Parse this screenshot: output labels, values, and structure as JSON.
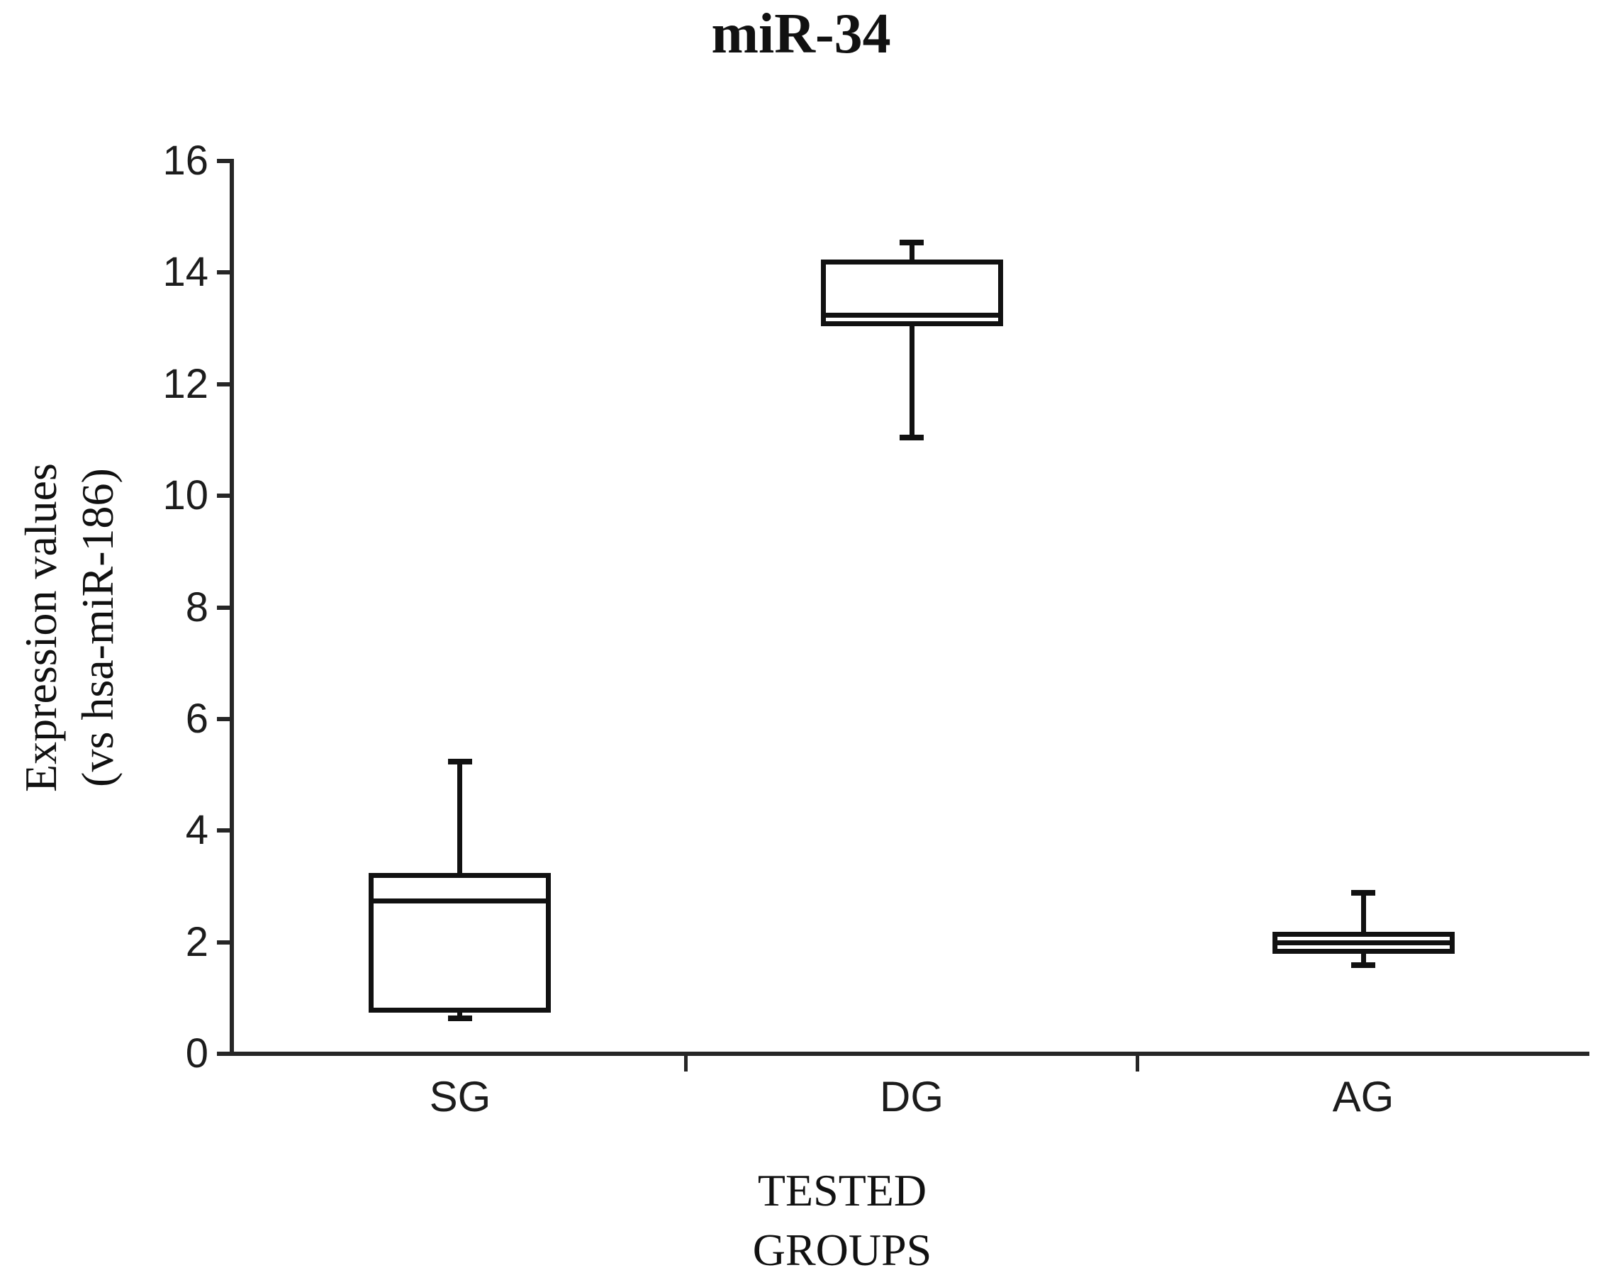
{
  "chart_data": {
    "type": "box",
    "title": "miR-34",
    "ylabel": "Expression values (vs hsa-miR-186)",
    "ylabel_line1": "Expression values",
    "ylabel_line2": "(vs hsa-miR-186)",
    "xlabel": "TESTED GROUPS",
    "xlabel_line1": "TESTED",
    "xlabel_line2": "GROUPS",
    "categories": [
      "SG",
      "DG",
      "AG"
    ],
    "ylim": [
      0,
      16
    ],
    "yticks": [
      0,
      2,
      4,
      6,
      8,
      10,
      12,
      14,
      16
    ],
    "grid": false,
    "legend_position": "none",
    "series": [
      {
        "name": "SG",
        "whisker_low": 0.6,
        "q1": 0.7,
        "median": 2.7,
        "q3": 3.2,
        "whisker_high": 5.2
      },
      {
        "name": "DG",
        "whisker_low": 11.0,
        "q1": 13.0,
        "median": 13.2,
        "q3": 14.2,
        "whisker_high": 14.5
      },
      {
        "name": "AG",
        "whisker_low": 1.55,
        "q1": 1.75,
        "median": 1.95,
        "q3": 2.15,
        "whisker_high": 2.85
      }
    ],
    "colors": {
      "line": "#111111",
      "axis": "#262626",
      "text": "#1a1a1a",
      "background": "#ffffff",
      "box_fill": "#ffffff"
    }
  }
}
